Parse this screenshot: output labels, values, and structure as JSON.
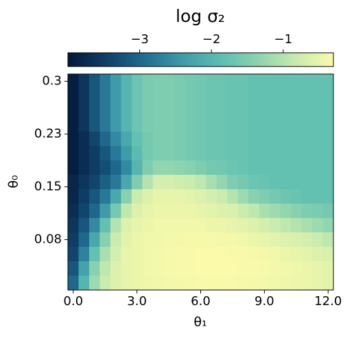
{
  "chart_data": {
    "type": "heatmap",
    "title": "log σ₂",
    "xlabel": "θ₁",
    "ylabel": "θ₀",
    "x": [
      0,
      0.5,
      1,
      1.5,
      2,
      2.5,
      3,
      3.5,
      4,
      4.5,
      5,
      5.5,
      6,
      6.5,
      7,
      7.5,
      8,
      8.5,
      9,
      9.5,
      10,
      10.5,
      11,
      11.5,
      12
    ],
    "y": [
      0.3,
      0.28,
      0.26,
      0.24,
      0.22,
      0.2,
      0.18,
      0.16,
      0.14,
      0.12,
      0.1,
      0.08,
      0.06,
      0.04,
      0.02
    ],
    "z": [
      [
        -3.9,
        -3.6,
        -3.2,
        -2.8,
        -2.4,
        -2.0,
        -1.7,
        -1.55,
        -1.5,
        -1.5,
        -1.55,
        -1.6,
        -1.65,
        -1.7,
        -1.7,
        -1.75,
        -1.75,
        -1.8,
        -1.8,
        -1.8,
        -1.8,
        -1.8,
        -1.8,
        -1.8,
        -1.8
      ],
      [
        -3.9,
        -3.6,
        -3.2,
        -2.8,
        -2.4,
        -2.0,
        -1.7,
        -1.55,
        -1.5,
        -1.5,
        -1.55,
        -1.6,
        -1.65,
        -1.7,
        -1.7,
        -1.75,
        -1.75,
        -1.8,
        -1.8,
        -1.8,
        -1.8,
        -1.8,
        -1.8,
        -1.8,
        -1.8
      ],
      [
        -3.9,
        -3.6,
        -3.2,
        -2.8,
        -2.4,
        -2.0,
        -1.7,
        -1.55,
        -1.5,
        -1.5,
        -1.55,
        -1.6,
        -1.65,
        -1.7,
        -1.7,
        -1.75,
        -1.75,
        -1.8,
        -1.8,
        -1.8,
        -1.8,
        -1.8,
        -1.8,
        -1.8,
        -1.8
      ],
      [
        -3.9,
        -3.6,
        -3.2,
        -2.8,
        -2.4,
        -2.0,
        -1.7,
        -1.55,
        -1.5,
        -1.5,
        -1.55,
        -1.6,
        -1.65,
        -1.7,
        -1.7,
        -1.75,
        -1.75,
        -1.8,
        -1.8,
        -1.8,
        -1.8,
        -1.8,
        -1.8,
        -1.8,
        -1.8
      ],
      [
        -3.9,
        -3.7,
        -3.4,
        -3.0,
        -2.6,
        -2.2,
        -1.8,
        -1.6,
        -1.5,
        -1.5,
        -1.55,
        -1.6,
        -1.65,
        -1.7,
        -1.7,
        -1.75,
        -1.75,
        -1.8,
        -1.8,
        -1.8,
        -1.8,
        -1.8,
        -1.8,
        -1.8,
        -1.8
      ],
      [
        -3.9,
        -3.7,
        -3.5,
        -3.2,
        -2.8,
        -2.4,
        -1.9,
        -1.6,
        -1.5,
        -1.5,
        -1.55,
        -1.6,
        -1.65,
        -1.7,
        -1.7,
        -1.75,
        -1.75,
        -1.8,
        -1.8,
        -1.8,
        -1.8,
        -1.8,
        -1.8,
        -1.8,
        -1.8
      ],
      [
        -3.9,
        -3.7,
        -3.5,
        -3.3,
        -3.0,
        -2.6,
        -2.0,
        -1.5,
        -1.3,
        -1.3,
        -1.35,
        -1.4,
        -1.5,
        -1.6,
        -1.65,
        -1.7,
        -1.75,
        -1.8,
        -1.8,
        -1.8,
        -1.8,
        -1.8,
        -1.8,
        -1.8,
        -1.8
      ],
      [
        -3.8,
        -3.6,
        -3.4,
        -3.1,
        -2.8,
        -2.2,
        -1.5,
        -1.0,
        -0.7,
        -0.7,
        -0.75,
        -0.8,
        -0.9,
        -1.1,
        -1.3,
        -1.5,
        -1.6,
        -1.7,
        -1.75,
        -1.8,
        -1.8,
        -1.8,
        -1.8,
        -1.8,
        -1.8
      ],
      [
        -3.8,
        -3.5,
        -3.2,
        -2.8,
        -2.2,
        -1.4,
        -0.8,
        -0.6,
        -0.5,
        -0.5,
        -0.5,
        -0.55,
        -0.6,
        -0.7,
        -0.8,
        -1.0,
        -1.2,
        -1.4,
        -1.5,
        -1.6,
        -1.7,
        -1.75,
        -1.8,
        -1.8,
        -1.8
      ],
      [
        -3.7,
        -3.4,
        -3.0,
        -2.4,
        -1.6,
        -0.9,
        -0.6,
        -0.5,
        -0.45,
        -0.45,
        -0.45,
        -0.45,
        -0.5,
        -0.55,
        -0.6,
        -0.65,
        -0.8,
        -0.9,
        -1.1,
        -1.2,
        -1.3,
        -1.4,
        -1.5,
        -1.55,
        -1.6
      ],
      [
        -3.6,
        -3.2,
        -2.6,
        -1.8,
        -1.0,
        -0.6,
        -0.5,
        -0.45,
        -0.4,
        -0.4,
        -0.4,
        -0.4,
        -0.4,
        -0.45,
        -0.45,
        -0.5,
        -0.55,
        -0.6,
        -0.7,
        -0.8,
        -0.9,
        -1.0,
        -1.1,
        -1.2,
        -1.3
      ],
      [
        -3.5,
        -3.0,
        -2.2,
        -1.4,
        -0.8,
        -0.55,
        -0.45,
        -0.4,
        -0.4,
        -0.38,
        -0.36,
        -0.35,
        -0.35,
        -0.35,
        -0.36,
        -0.38,
        -0.4,
        -0.45,
        -0.5,
        -0.55,
        -0.6,
        -0.65,
        -0.7,
        -0.8,
        -0.9
      ],
      [
        -3.4,
        -2.7,
        -1.8,
        -1.1,
        -0.7,
        -0.5,
        -0.45,
        -0.4,
        -0.38,
        -0.35,
        -0.33,
        -0.32,
        -0.31,
        -0.31,
        -0.31,
        -0.32,
        -0.33,
        -0.35,
        -0.38,
        -0.4,
        -0.45,
        -0.5,
        -0.55,
        -0.6,
        -0.65
      ],
      [
        -3.2,
        -2.3,
        -1.4,
        -0.9,
        -0.6,
        -0.5,
        -0.45,
        -0.4,
        -0.38,
        -0.35,
        -0.33,
        -0.32,
        -0.31,
        -0.3,
        -0.3,
        -0.31,
        -0.32,
        -0.33,
        -0.35,
        -0.38,
        -0.4,
        -0.42,
        -0.45,
        -0.5,
        -0.55
      ],
      [
        -3.0,
        -2.0,
        -1.2,
        -0.8,
        -0.6,
        -0.5,
        -0.45,
        -0.42,
        -0.4,
        -0.38,
        -0.36,
        -0.34,
        -0.33,
        -0.32,
        -0.32,
        -0.33,
        -0.34,
        -0.36,
        -0.38,
        -0.4,
        -0.42,
        -0.44,
        -0.46,
        -0.5,
        -0.55
      ]
    ],
    "xlim": [
      -0.25,
      12.25
    ],
    "ylim": [
      0.01,
      0.31
    ],
    "xticks": [
      {
        "value": 0,
        "label": "0.0"
      },
      {
        "value": 3,
        "label": "3.0"
      },
      {
        "value": 6,
        "label": "6.0"
      },
      {
        "value": 9,
        "label": "9.0"
      },
      {
        "value": 12,
        "label": "12.0"
      }
    ],
    "yticks": [
      0.3,
      {
        "value": 0.2267,
        "label": "0.23"
      },
      {
        "value": 0.1533,
        "label": "0.15"
      },
      0.08
    ],
    "clim": [
      -4,
      -0.3
    ],
    "cticks": [
      {
        "value": -3,
        "label": "−3"
      },
      {
        "value": -2,
        "label": "−2"
      },
      {
        "value": -1,
        "label": "−1"
      }
    ],
    "colormap": [
      "#03183a",
      "#0f3f66",
      "#1f6d91",
      "#3e9aa8",
      "#5bbdb1",
      "#8cd3b0",
      "#c7ebae",
      "#fbfaaa"
    ]
  }
}
